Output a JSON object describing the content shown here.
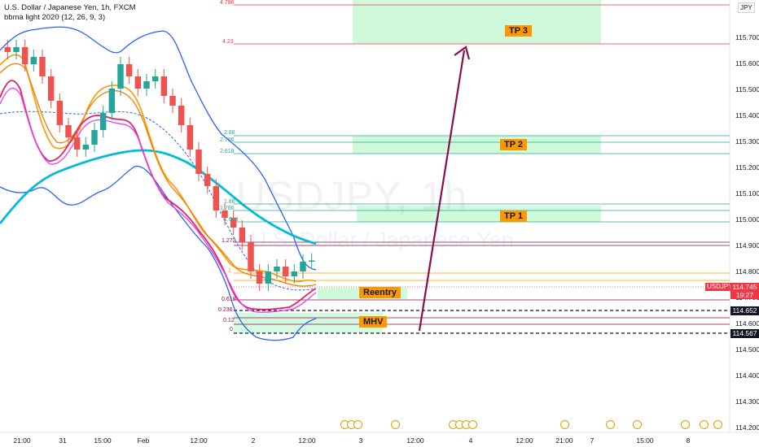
{
  "legend": {
    "title": "U.S. Dollar / Japanese Yen, 1h, FXCM",
    "indicator": "bbma light 2020 (12, 26, 9, 3)"
  },
  "watermark": {
    "symbol": "USDJPY, 1h",
    "name": "U.S. Dollar / Japanese Yen"
  },
  "currency_badge": "JPY",
  "price_axis": [
    "115.700",
    "115.600",
    "115.500",
    "115.400",
    "115.300",
    "115.200",
    "115.100",
    "115.000",
    "114.900",
    "114.800",
    "114.700",
    "114.600",
    "114.500",
    "114.400",
    "114.300",
    "114.200"
  ],
  "time_axis": [
    "21:00",
    "31",
    "15:00",
    "Feb",
    "12:00",
    "2",
    "12:00",
    "3",
    "12:00",
    "4",
    "12:00",
    "21:00",
    "7",
    "15:00",
    "8"
  ],
  "price_boxes": {
    "current": "114.745",
    "countdown": "19:27",
    "symbol": "USDJPY",
    "level_a": "114.652",
    "level_b": "114.567"
  },
  "zones": {
    "tp3": "TP 3",
    "tp2": "TP 2",
    "tp1": "TP 1",
    "reentry": "Reentry",
    "mhv": "MHV"
  },
  "fib_labels": {
    "f4786": "4.786",
    "f423": "4.23",
    "f2x": "2.88",
    "f2786": "2.786",
    "f2618": "2.618",
    "f186": "1.86",
    "f1786": "1.786",
    "f1618": "1.618",
    "f1272": "1.272",
    "f1": "1",
    "f0618": "0.618",
    "f0382": "0.382",
    "f0236": "0.236",
    "f012": "0.12",
    "f0": "0"
  },
  "colors": {
    "up": "#26a69a",
    "down": "#ef5350",
    "bb_outer": "#2962ff",
    "ma_fast": "#e91e63",
    "ma_orange": "#ff9800",
    "ma_cyan": "#00bcd4",
    "arrow": "#880e4f",
    "zone": "#b9f6ca"
  },
  "chart_data": {
    "type": "line",
    "title": "U.S. Dollar / Japanese Yen, 1h, FXCM",
    "ylim": [
      114.2,
      115.8
    ],
    "xticks": [
      "21:00",
      "31",
      "15:00",
      "Feb",
      "12:00",
      "2",
      "12:00",
      "3",
      "12:00",
      "4",
      "12:00",
      "21:00",
      "7",
      "15:00",
      "8"
    ],
    "current_price": 114.745,
    "series": [
      {
        "name": "USDJPY",
        "values": [
          115.6,
          115.62,
          115.55,
          115.58,
          115.5,
          115.4,
          115.3,
          115.25,
          115.2,
          115.22,
          115.28,
          115.35,
          115.45,
          115.55,
          115.5,
          115.45,
          115.48,
          115.5,
          115.42,
          115.38,
          115.3,
          115.2,
          115.1,
          115.05,
          114.95,
          114.92,
          114.88,
          114.82,
          114.7,
          114.65,
          114.7,
          114.72,
          114.68,
          114.7,
          114.74,
          114.745
        ]
      }
    ],
    "levels": [
      {
        "label": "4.786",
        "value": 115.79
      },
      {
        "label": "4.23",
        "value": 115.67
      },
      {
        "label": "2.786",
        "value": 115.3
      },
      {
        "label": "2.618",
        "value": 115.25
      },
      {
        "label": "1.786",
        "value": 115.03
      },
      {
        "label": "1.618",
        "value": 114.99
      },
      {
        "label": "1.272",
        "value": 114.89
      },
      {
        "label": "1",
        "value": 114.8
      },
      {
        "label": "0.618",
        "value": 114.72
      },
      {
        "label": "0.236",
        "value": 114.66
      },
      {
        "label": "0.12",
        "value": 114.62
      },
      {
        "label": "0",
        "value": 114.567
      }
    ]
  }
}
